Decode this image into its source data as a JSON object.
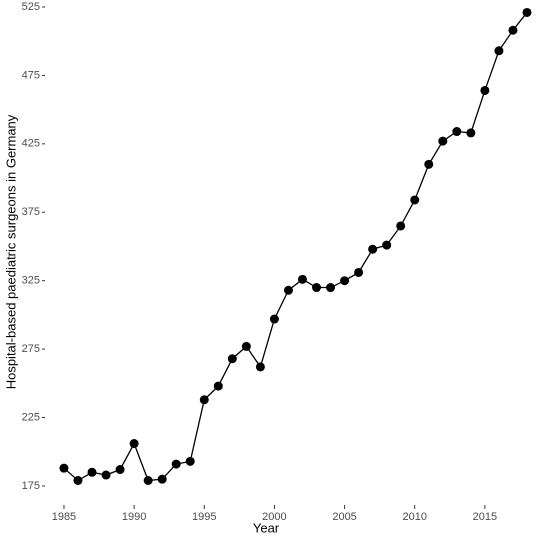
{
  "chart_data": {
    "type": "line",
    "xlabel": "Year",
    "ylabel": "Hospital-based paediatric surgeons in Germany",
    "x": [
      1985,
      1986,
      1987,
      1988,
      1989,
      1990,
      1991,
      1992,
      1993,
      1994,
      1995,
      1996,
      1997,
      1998,
      1999,
      2000,
      2001,
      2002,
      2003,
      2004,
      2005,
      2006,
      2007,
      2008,
      2009,
      2010,
      2011,
      2012,
      2013,
      2014,
      2015,
      2016,
      2017,
      2018
    ],
    "series": [
      {
        "color": "#000000",
        "values": [
          188,
          179,
          185,
          183,
          187,
          206,
          179,
          180,
          191,
          193,
          238,
          248,
          268,
          277,
          262,
          297,
          318,
          326,
          320,
          320,
          325,
          331,
          348,
          351,
          365,
          384,
          410,
          427,
          434,
          433,
          464,
          493,
          508,
          521
        ]
      }
    ],
    "xlim": [
      1983.72,
      2018.5
    ],
    "xticks": [
      1985,
      1990,
      1995,
      2000,
      2005,
      2010,
      2015
    ],
    "ylim": [
      161.1,
      530.1
    ],
    "yticks": [
      175,
      225,
      275,
      325,
      375,
      425,
      475,
      525
    ]
  }
}
